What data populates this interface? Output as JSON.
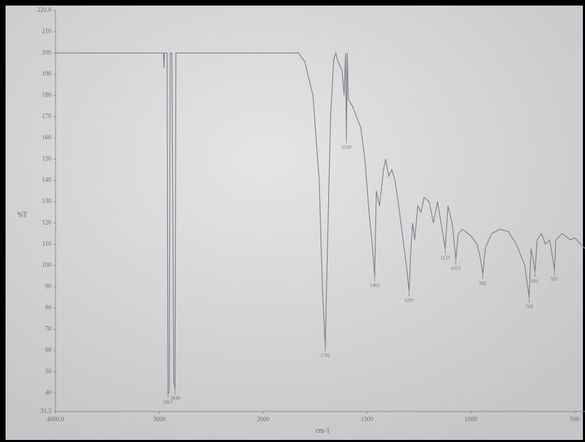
{
  "chart_data": {
    "type": "line",
    "x_label": "cm-1",
    "y_label": "%T",
    "color": "#7b7e82",
    "xlim": [
      4000,
      450
    ],
    "ylim": [
      31.3,
      220
    ],
    "xticks": [
      {
        "value": 4000,
        "label": "4000.0"
      },
      3000,
      2000,
      1500,
      1000,
      500
    ],
    "yticks": [
      31.3,
      40,
      50,
      60,
      70,
      80,
      90,
      100,
      110,
      120,
      130,
      140,
      150,
      160,
      170,
      180,
      190,
      200,
      210,
      {
        "value": 220,
        "label": "220.0"
      }
    ],
    "x": [
      4000,
      3000,
      2960,
      2955,
      2950,
      2925,
      2917,
      2905,
      2895,
      2880,
      2860,
      2849,
      2840,
      2000,
      1830,
      1800,
      1760,
      1730,
      1715,
      1701,
      1690,
      1675,
      1660,
      1650,
      1640,
      1620,
      1610,
      1603,
      1599,
      1595,
      1590,
      1570,
      1550,
      1530,
      1510,
      1490,
      1475,
      1463,
      1455,
      1440,
      1420,
      1410,
      1395,
      1380,
      1365,
      1350,
      1330,
      1310,
      1297,
      1290,
      1280,
      1270,
      1255,
      1240,
      1225,
      1200,
      1180,
      1160,
      1140,
      1123,
      1110,
      1090,
      1072,
      1060,
      1040,
      1000,
      970,
      955,
      942,
      930,
      900,
      860,
      820,
      780,
      760,
      740,
      719,
      710,
      700,
      691,
      680,
      660,
      640,
      620,
      597,
      590,
      560,
      520,
      500,
      470,
      450
    ],
    "values": [
      200,
      200,
      200,
      193,
      200,
      200,
      40,
      40,
      200,
      200,
      45,
      42,
      200,
      200,
      200,
      196,
      180,
      140,
      90,
      62,
      110,
      170,
      197,
      200,
      196,
      192,
      180,
      200,
      160,
      200,
      178,
      175,
      170,
      165,
      150,
      125,
      110,
      95,
      135,
      128,
      145,
      150,
      142,
      145,
      140,
      130,
      115,
      100,
      88,
      105,
      120,
      112,
      128,
      125,
      132,
      130,
      120,
      130,
      118,
      108,
      128,
      120,
      103,
      115,
      117,
      114,
      110,
      104,
      96,
      108,
      115,
      117,
      116,
      110,
      105,
      100,
      85,
      108,
      103,
      97,
      112,
      115,
      110,
      112,
      98,
      112,
      115,
      112,
      113,
      110,
      108
    ],
    "peaks": [
      {
        "x": 2917,
        "y": 40
      },
      {
        "x": 2849,
        "y": 42
      },
      {
        "x": 1701,
        "y": 62
      },
      {
        "x": 1599,
        "y": 160
      },
      {
        "x": 1463,
        "y": 95
      },
      {
        "x": 1297,
        "y": 88
      },
      {
        "x": 1123,
        "y": 108
      },
      {
        "x": 1072,
        "y": 103
      },
      {
        "x": 942,
        "y": 96
      },
      {
        "x": 719,
        "y": 85
      },
      {
        "x": 691,
        "y": 97
      },
      {
        "x": 597,
        "y": 98
      }
    ]
  }
}
